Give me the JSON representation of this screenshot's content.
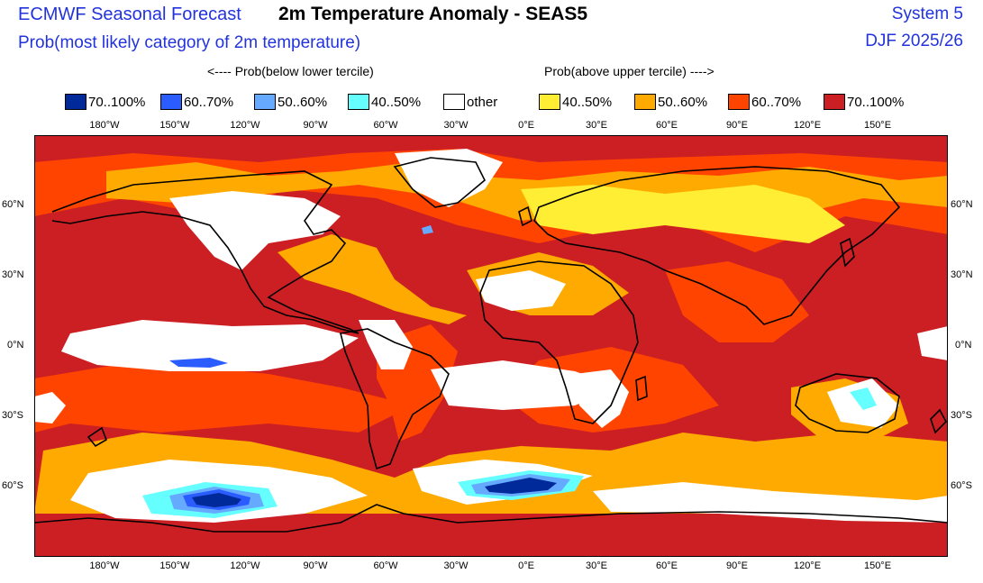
{
  "header": {
    "org": "ECMWF Seasonal Forecast",
    "title": "2m Temperature Anomaly - SEAS5",
    "subtitle": "Prob(most likely category of 2m temperature)",
    "system": "System 5",
    "period": "DJF 2025/26"
  },
  "groups": {
    "below": "<---- Prob(below lower tercile)",
    "above": "Prob(above upper tercile) ---->"
  },
  "legend": [
    {
      "label": "70..100%",
      "color": "#002a99"
    },
    {
      "label": "60..70%",
      "color": "#2a5cff"
    },
    {
      "label": "50..60%",
      "color": "#66aaff"
    },
    {
      "label": "40..50%",
      "color": "#66ffff"
    },
    {
      "label": "other",
      "color": "#ffffff"
    },
    {
      "label": "40..50%",
      "color": "#ffee33"
    },
    {
      "label": "50..60%",
      "color": "#ffaa00"
    },
    {
      "label": "60..70%",
      "color": "#ff4400"
    },
    {
      "label": "70..100%",
      "color": "#cc1f24"
    }
  ],
  "lon_labels": [
    "180°W",
    "150°W",
    "120°W",
    "90°W",
    "60°W",
    "30°W",
    "0°E",
    "30°E",
    "60°E",
    "90°E",
    "120°E",
    "150°E"
  ],
  "lat_labels": [
    "60°N",
    "30°N",
    "0°N",
    "30°S",
    "60°S"
  ],
  "colors": {
    "ocean": "#cc1f24",
    "white": "#ffffff",
    "y40": "#ffee33",
    "o50": "#ffaa00",
    "r60": "#ff4400",
    "b40": "#66ffff",
    "b50": "#66aaff",
    "b60": "#2a5cff",
    "b70": "#002a99",
    "coast": "#000000"
  }
}
